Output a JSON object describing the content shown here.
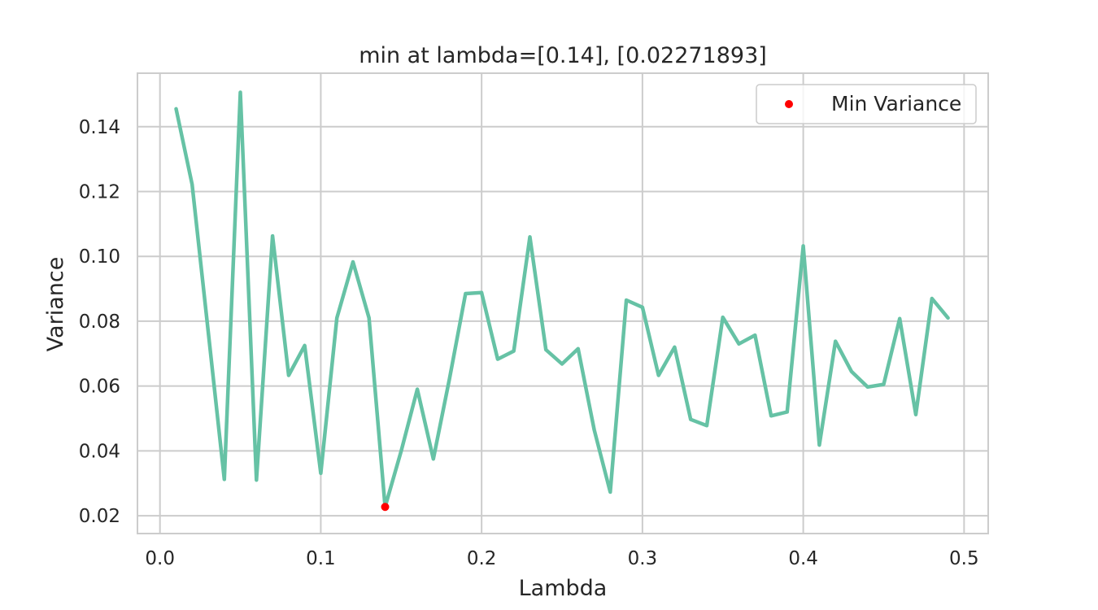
{
  "chart_data": {
    "type": "line",
    "title": "min at lambda=[0.14], [0.02271893]",
    "xlabel": "Lambda",
    "ylabel": "Variance",
    "xlim": [
      -0.014,
      0.515
    ],
    "ylim": [
      0.0145,
      0.1565
    ],
    "xticks": [
      0.0,
      0.1,
      0.2,
      0.3,
      0.4,
      0.5
    ],
    "xtick_labels": [
      "0.0",
      "0.1",
      "0.2",
      "0.3",
      "0.4",
      "0.5"
    ],
    "yticks": [
      0.02,
      0.04,
      0.06,
      0.08,
      0.1,
      0.12,
      0.14
    ],
    "ytick_labels": [
      "0.02",
      "0.04",
      "0.06",
      "0.08",
      "0.10",
      "0.12",
      "0.14"
    ],
    "grid": true,
    "legend_position": "top-right",
    "colors": {
      "line": "#66c2a5",
      "marker": "#ff0000",
      "grid": "#cccccc",
      "spine": "#cccccc"
    },
    "series": [
      {
        "x": [
          0.01,
          0.02,
          0.03,
          0.04,
          0.05,
          0.06,
          0.07,
          0.08,
          0.09,
          0.1,
          0.11,
          0.12,
          0.13,
          0.14,
          0.15,
          0.16,
          0.17,
          0.18,
          0.19,
          0.2,
          0.21,
          0.22,
          0.23,
          0.24,
          0.25,
          0.26,
          0.27,
          0.28,
          0.29,
          0.3,
          0.31,
          0.32,
          0.33,
          0.34,
          0.35,
          0.36,
          0.37,
          0.38,
          0.39,
          0.4,
          0.41,
          0.42,
          0.43,
          0.44,
          0.45,
          0.46,
          0.47,
          0.48,
          0.49
        ],
        "y": [
          0.1455,
          0.1222,
          0.0768,
          0.0312,
          0.1506,
          0.031,
          0.1063,
          0.0633,
          0.0725,
          0.0331,
          0.081,
          0.0983,
          0.081,
          0.0227,
          0.04,
          0.059,
          0.0375,
          0.0622,
          0.0885,
          0.0888,
          0.0683,
          0.0708,
          0.106,
          0.0712,
          0.0668,
          0.0715,
          0.0465,
          0.0273,
          0.0865,
          0.0843,
          0.0633,
          0.072,
          0.0497,
          0.0478,
          0.0812,
          0.073,
          0.0757,
          0.0508,
          0.052,
          0.1032,
          0.0418,
          0.0738,
          0.0645,
          0.0597,
          0.0605,
          0.0808,
          0.0512,
          0.087,
          0.081
        ]
      }
    ],
    "min_point": {
      "name": "Min Variance",
      "x": 0.14,
      "y": 0.02271893
    }
  }
}
